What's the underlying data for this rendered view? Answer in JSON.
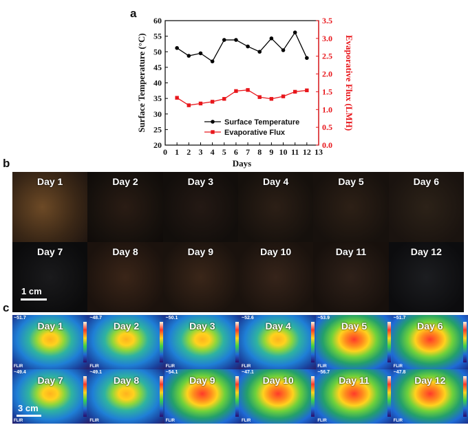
{
  "panel_labels": {
    "a": "a",
    "b": "b",
    "c": "c"
  },
  "chart_data": {
    "type": "line",
    "x": [
      1,
      2,
      3,
      4,
      5,
      6,
      7,
      8,
      9,
      10,
      11,
      12
    ],
    "series": [
      {
        "name": "Surface Temperature",
        "axis": "left",
        "color": "#000000",
        "marker": "circle",
        "values": [
          51.2,
          48.7,
          49.5,
          46.9,
          53.8,
          53.8,
          51.7,
          50.0,
          54.3,
          50.5,
          56.2,
          48.0
        ]
      },
      {
        "name": "Evaporative Flux",
        "axis": "right",
        "color": "#e8161b",
        "marker": "square",
        "values": [
          1.33,
          1.12,
          1.17,
          1.22,
          1.3,
          1.52,
          1.55,
          1.35,
          1.3,
          1.37,
          1.5,
          1.54
        ]
      }
    ],
    "xlabel": "Days",
    "ylabel_left": "Surface Temperature (°C)",
    "ylabel_right": "Evaporative Flux (LMH)",
    "xlim": [
      0,
      13
    ],
    "ylim_left": [
      20,
      60
    ],
    "ylim_right": [
      0.0,
      3.5
    ],
    "x_ticks": [
      "0",
      "1",
      "2",
      "3",
      "4",
      "5",
      "6",
      "7",
      "8",
      "9",
      "10",
      "11",
      "12",
      "13"
    ],
    "y_left_ticks": [
      "20",
      "25",
      "30",
      "35",
      "40",
      "45",
      "50",
      "55",
      "60"
    ],
    "y_right_ticks": [
      "0.0",
      "0.5",
      "1.0",
      "1.5",
      "2.0",
      "2.5",
      "3.0",
      "3.5"
    ],
    "legend_position": "lower-center",
    "grid": false
  },
  "photos": {
    "days": [
      "Day 1",
      "Day 2",
      "Day 3",
      "Day 4",
      "Day 5",
      "Day 6",
      "Day 7",
      "Day 8",
      "Day 9",
      "Day 10",
      "Day 11",
      "Day 12"
    ],
    "scale_label": "1 cm"
  },
  "thermal": {
    "days": [
      "Day 1",
      "Day 2",
      "Day 3",
      "Day 4",
      "Day 5",
      "Day 6",
      "Day 7",
      "Day 8",
      "Day 9",
      "Day 10",
      "Day 11",
      "Day 12"
    ],
    "max_temps": [
      "~51.7",
      "~48.7",
      "~50.1",
      "~52.6",
      "~53.9",
      "~51.7",
      "~49.4",
      "~49.1",
      "~54.1",
      "~47.1",
      "~56.7",
      "~47.8"
    ],
    "brand": "FLIR",
    "scale_label": "3 cm"
  }
}
